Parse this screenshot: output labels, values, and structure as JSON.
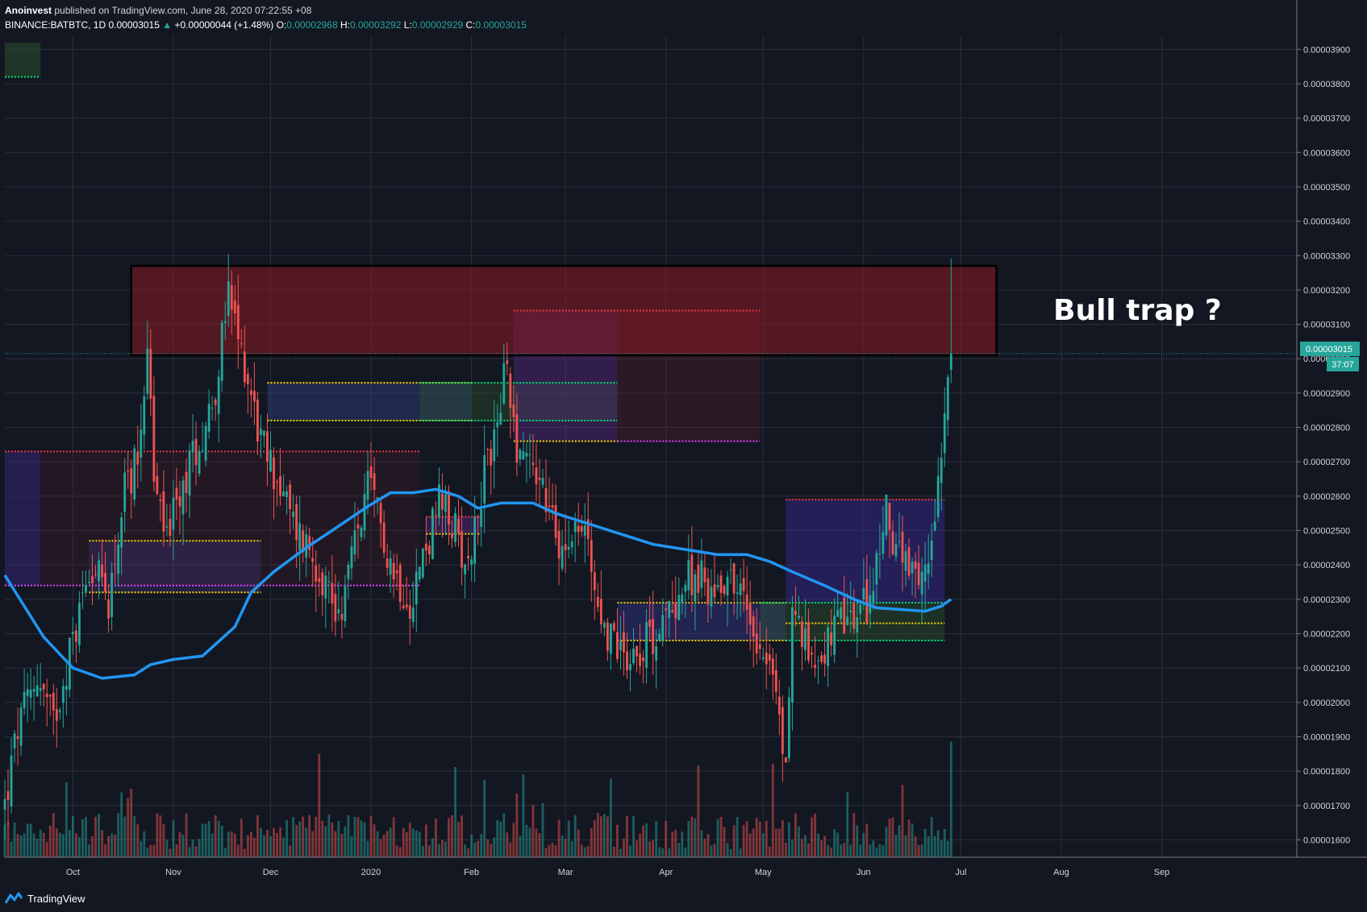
{
  "header": {
    "author": "Anoinvest",
    "published": "published on TradingView.com, June 28, 2020 07:22:55 +08",
    "symbol": "BINANCE:BATBTC, 1D",
    "last": "0.00003015",
    "change": "+0.00000044 (+1.48%)",
    "o_label": "O:",
    "o_value": "0.00002968",
    "h_label": "H:",
    "h_value": "0.00003292",
    "l_label": "L:",
    "l_value": "0.00002929",
    "c_label": "C:",
    "c_value": "0.00003015"
  },
  "footer": {
    "brand": "TradingView",
    "logo_icon": "tradingview-logo-icon"
  },
  "annotation": {
    "text": "Bull trap ?"
  },
  "price_tag": {
    "price": "0.00003015",
    "countdown": "37:07"
  },
  "colors": {
    "background": "#131722",
    "grid": "#2a2e39",
    "up": "#26a69a",
    "down": "#ef5350",
    "ma": "#2196f3",
    "zone": "#7a1a1e",
    "tag": "#26a69a"
  },
  "chart_data": {
    "type": "candlestick",
    "title": "BINANCE:BATBTC, 1D",
    "ylim": [
      1.54e-05,
      3.95e-05
    ],
    "x_tick_labels": [
      "Oct",
      "Nov",
      "Dec",
      "2020",
      "Feb",
      "Mar",
      "Apr",
      "May",
      "Jun",
      "Jul",
      "Aug",
      "Sep"
    ],
    "y_tick_labels": [
      "0.00003900",
      "0.00003800",
      "0.00003700",
      "0.00003600",
      "0.00003500",
      "0.00003400",
      "0.00003300",
      "0.00003200",
      "0.00003100",
      "0.00003000",
      "0.00002900",
      "0.00002800",
      "0.00002700",
      "0.00002600",
      "0.00002500",
      "0.00002400",
      "0.00002300",
      "0.00002200",
      "0.00002100",
      "0.00002000",
      "0.00001900",
      "0.00001800",
      "0.00001700",
      "0.00001600"
    ],
    "close_path": [
      [
        "2019-09-10",
        1.7
      ],
      [
        "2019-09-14",
        1.92
      ],
      [
        "2019-09-20",
        2.08
      ],
      [
        "2019-09-25",
        1.94
      ],
      [
        "2019-09-28",
        2.07
      ],
      [
        "2019-10-02",
        2.22
      ],
      [
        "2019-10-06",
        2.41
      ],
      [
        "2019-10-12",
        2.3
      ],
      [
        "2019-10-17",
        2.61
      ],
      [
        "2019-10-21",
        2.72
      ],
      [
        "2019-10-24",
        3.05
      ],
      [
        "2019-10-26",
        2.65
      ],
      [
        "2019-10-29",
        2.5
      ],
      [
        "2019-11-02",
        2.55
      ],
      [
        "2019-11-06",
        2.7
      ],
      [
        "2019-11-10",
        2.78
      ],
      [
        "2019-11-14",
        2.92
      ],
      [
        "2019-11-18",
        3.18
      ],
      [
        "2019-11-21",
        3.05
      ],
      [
        "2019-11-24",
        2.95
      ],
      [
        "2019-11-28",
        2.76
      ],
      [
        "2019-12-03",
        2.65
      ],
      [
        "2019-12-08",
        2.52
      ],
      [
        "2019-12-13",
        2.45
      ],
      [
        "2019-12-18",
        2.35
      ],
      [
        "2019-12-22",
        2.25
      ],
      [
        "2019-12-26",
        2.42
      ],
      [
        "2019-12-31",
        2.62
      ],
      [
        "2020-01-03",
        2.55
      ],
      [
        "2020-01-08",
        2.38
      ],
      [
        "2020-01-13",
        2.3
      ],
      [
        "2020-01-18",
        2.45
      ],
      [
        "2020-01-22",
        2.58
      ],
      [
        "2020-01-27",
        2.5
      ],
      [
        "2020-01-31",
        2.4
      ],
      [
        "2020-02-04",
        2.62
      ],
      [
        "2020-02-08",
        2.78
      ],
      [
        "2020-02-12",
        2.98
      ],
      [
        "2020-02-15",
        2.75
      ],
      [
        "2020-02-19",
        2.72
      ],
      [
        "2020-02-23",
        2.62
      ],
      [
        "2020-02-28",
        2.45
      ],
      [
        "2020-03-03",
        2.52
      ],
      [
        "2020-03-08",
        2.48
      ],
      [
        "2020-03-12",
        2.22
      ],
      [
        "2020-03-16",
        2.18
      ],
      [
        "2020-03-21",
        2.14
      ],
      [
        "2020-03-26",
        2.18
      ],
      [
        "2020-03-31",
        2.22
      ],
      [
        "2020-04-05",
        2.32
      ],
      [
        "2020-04-10",
        2.38
      ],
      [
        "2020-04-15",
        2.32
      ],
      [
        "2020-04-20",
        2.38
      ],
      [
        "2020-04-25",
        2.3
      ],
      [
        "2020-04-29",
        2.2
      ],
      [
        "2020-05-03",
        2.12
      ],
      [
        "2020-05-06",
        1.95
      ],
      [
        "2020-05-08",
        1.8
      ],
      [
        "2020-05-10",
        2.28
      ],
      [
        "2020-05-14",
        2.16
      ],
      [
        "2020-05-19",
        2.14
      ],
      [
        "2020-05-24",
        2.22
      ],
      [
        "2020-05-29",
        2.24
      ],
      [
        "2020-06-03",
        2.3
      ],
      [
        "2020-06-08",
        2.55
      ],
      [
        "2020-06-13",
        2.4
      ],
      [
        "2020-06-18",
        2.32
      ],
      [
        "2020-06-21",
        2.42
      ],
      [
        "2020-06-24",
        2.66
      ],
      [
        "2020-06-27",
        2.97
      ],
      [
        "2020-06-28",
        3.015
      ]
    ],
    "ma_path": [
      [
        "2019-09-10",
        2.37
      ],
      [
        "2019-09-22",
        2.19
      ],
      [
        "2019-10-01",
        2.1
      ],
      [
        "2019-10-10",
        2.07
      ],
      [
        "2019-10-20",
        2.08
      ],
      [
        "2019-10-25",
        2.11
      ],
      [
        "2019-11-01",
        2.125
      ],
      [
        "2019-11-10",
        2.135
      ],
      [
        "2019-11-20",
        2.22
      ],
      [
        "2019-11-25",
        2.32
      ],
      [
        "2019-12-02",
        2.38
      ],
      [
        "2019-12-12",
        2.45
      ],
      [
        "2019-12-20",
        2.5
      ],
      [
        "2019-12-31",
        2.57
      ],
      [
        "2020-01-07",
        2.61
      ],
      [
        "2020-01-14",
        2.61
      ],
      [
        "2020-01-21",
        2.62
      ],
      [
        "2020-01-28",
        2.6
      ],
      [
        "2020-02-03",
        2.565
      ],
      [
        "2020-02-10",
        2.58
      ],
      [
        "2020-02-20",
        2.58
      ],
      [
        "2020-02-27",
        2.55
      ],
      [
        "2020-03-08",
        2.52
      ],
      [
        "2020-03-18",
        2.49
      ],
      [
        "2020-03-28",
        2.46
      ],
      [
        "2020-04-07",
        2.445
      ],
      [
        "2020-04-17",
        2.43
      ],
      [
        "2020-04-26",
        2.43
      ],
      [
        "2020-05-03",
        2.41
      ],
      [
        "2020-05-10",
        2.38
      ],
      [
        "2020-05-20",
        2.34
      ],
      [
        "2020-05-29",
        2.3
      ],
      [
        "2020-06-05",
        2.275
      ],
      [
        "2020-06-13",
        2.27
      ],
      [
        "2020-06-20",
        2.265
      ],
      [
        "2020-06-25",
        2.28
      ],
      [
        "2020-06-28",
        2.3
      ]
    ],
    "ma_label": "",
    "resistance_zone": {
      "from": "2019-10-19",
      "to": "2020-07-12",
      "low": 3.01,
      "high": 3.27
    },
    "last_price": 3.015,
    "last_candle": {
      "open": 2.968,
      "high": 3.292,
      "low": 2.929,
      "close": 3.015
    },
    "level_lines": [
      {
        "from": "2019-09-10",
        "to": "2020-01-16",
        "price": 2.73,
        "color": "#f23645"
      },
      {
        "from": "2019-09-10",
        "to": "2020-01-16",
        "price": 2.34,
        "color": "#e040fb"
      },
      {
        "from": "2019-10-06",
        "to": "2019-11-28",
        "price": 2.47,
        "color": "#ffd600"
      },
      {
        "from": "2019-10-06",
        "to": "2019-11-28",
        "price": 2.32,
        "color": "#ffd600"
      },
      {
        "from": "2019-11-30",
        "to": "2020-02-01",
        "price": 2.93,
        "color": "#ffd600"
      },
      {
        "from": "2019-11-30",
        "to": "2020-02-01",
        "price": 2.82,
        "color": "#ffd600"
      },
      {
        "from": "2020-01-16",
        "to": "2020-03-17",
        "price": 2.93,
        "color": "#00e676"
      },
      {
        "from": "2020-01-16",
        "to": "2020-03-17",
        "price": 2.82,
        "color": "#00e676"
      },
      {
        "from": "2020-02-14",
        "to": "2020-04-30",
        "price": 3.14,
        "color": "#f23645"
      },
      {
        "from": "2020-03-17",
        "to": "2020-04-30",
        "price": 2.76,
        "color": "#e040fb"
      },
      {
        "from": "2020-02-14",
        "to": "2020-03-17",
        "price": 2.76,
        "color": "#ffd600"
      },
      {
        "from": "2020-01-18",
        "to": "2020-02-04",
        "price": 2.54,
        "color": "#f23645"
      },
      {
        "from": "2020-01-18",
        "to": "2020-02-04",
        "price": 2.49,
        "color": "#ffd600"
      },
      {
        "from": "2020-03-17",
        "to": "2020-05-08",
        "price": 2.29,
        "color": "#ffd600"
      },
      {
        "from": "2020-03-17",
        "to": "2020-05-08",
        "price": 2.18,
        "color": "#ffd600"
      },
      {
        "from": "2020-04-30",
        "to": "2020-06-26",
        "price": 2.29,
        "color": "#00e676"
      },
      {
        "from": "2020-05-08",
        "to": "2020-06-26",
        "price": 2.23,
        "color": "#ffd600"
      },
      {
        "from": "2020-05-08",
        "to": "2020-06-26",
        "price": 2.18,
        "color": "#00e676"
      },
      {
        "from": "2020-05-08",
        "to": "2020-06-26",
        "price": 2.59,
        "color": "#f23645"
      },
      {
        "from": "2019-09-10",
        "to": "2019-09-21",
        "price": 3.82,
        "color": "#00e676"
      }
    ]
  }
}
